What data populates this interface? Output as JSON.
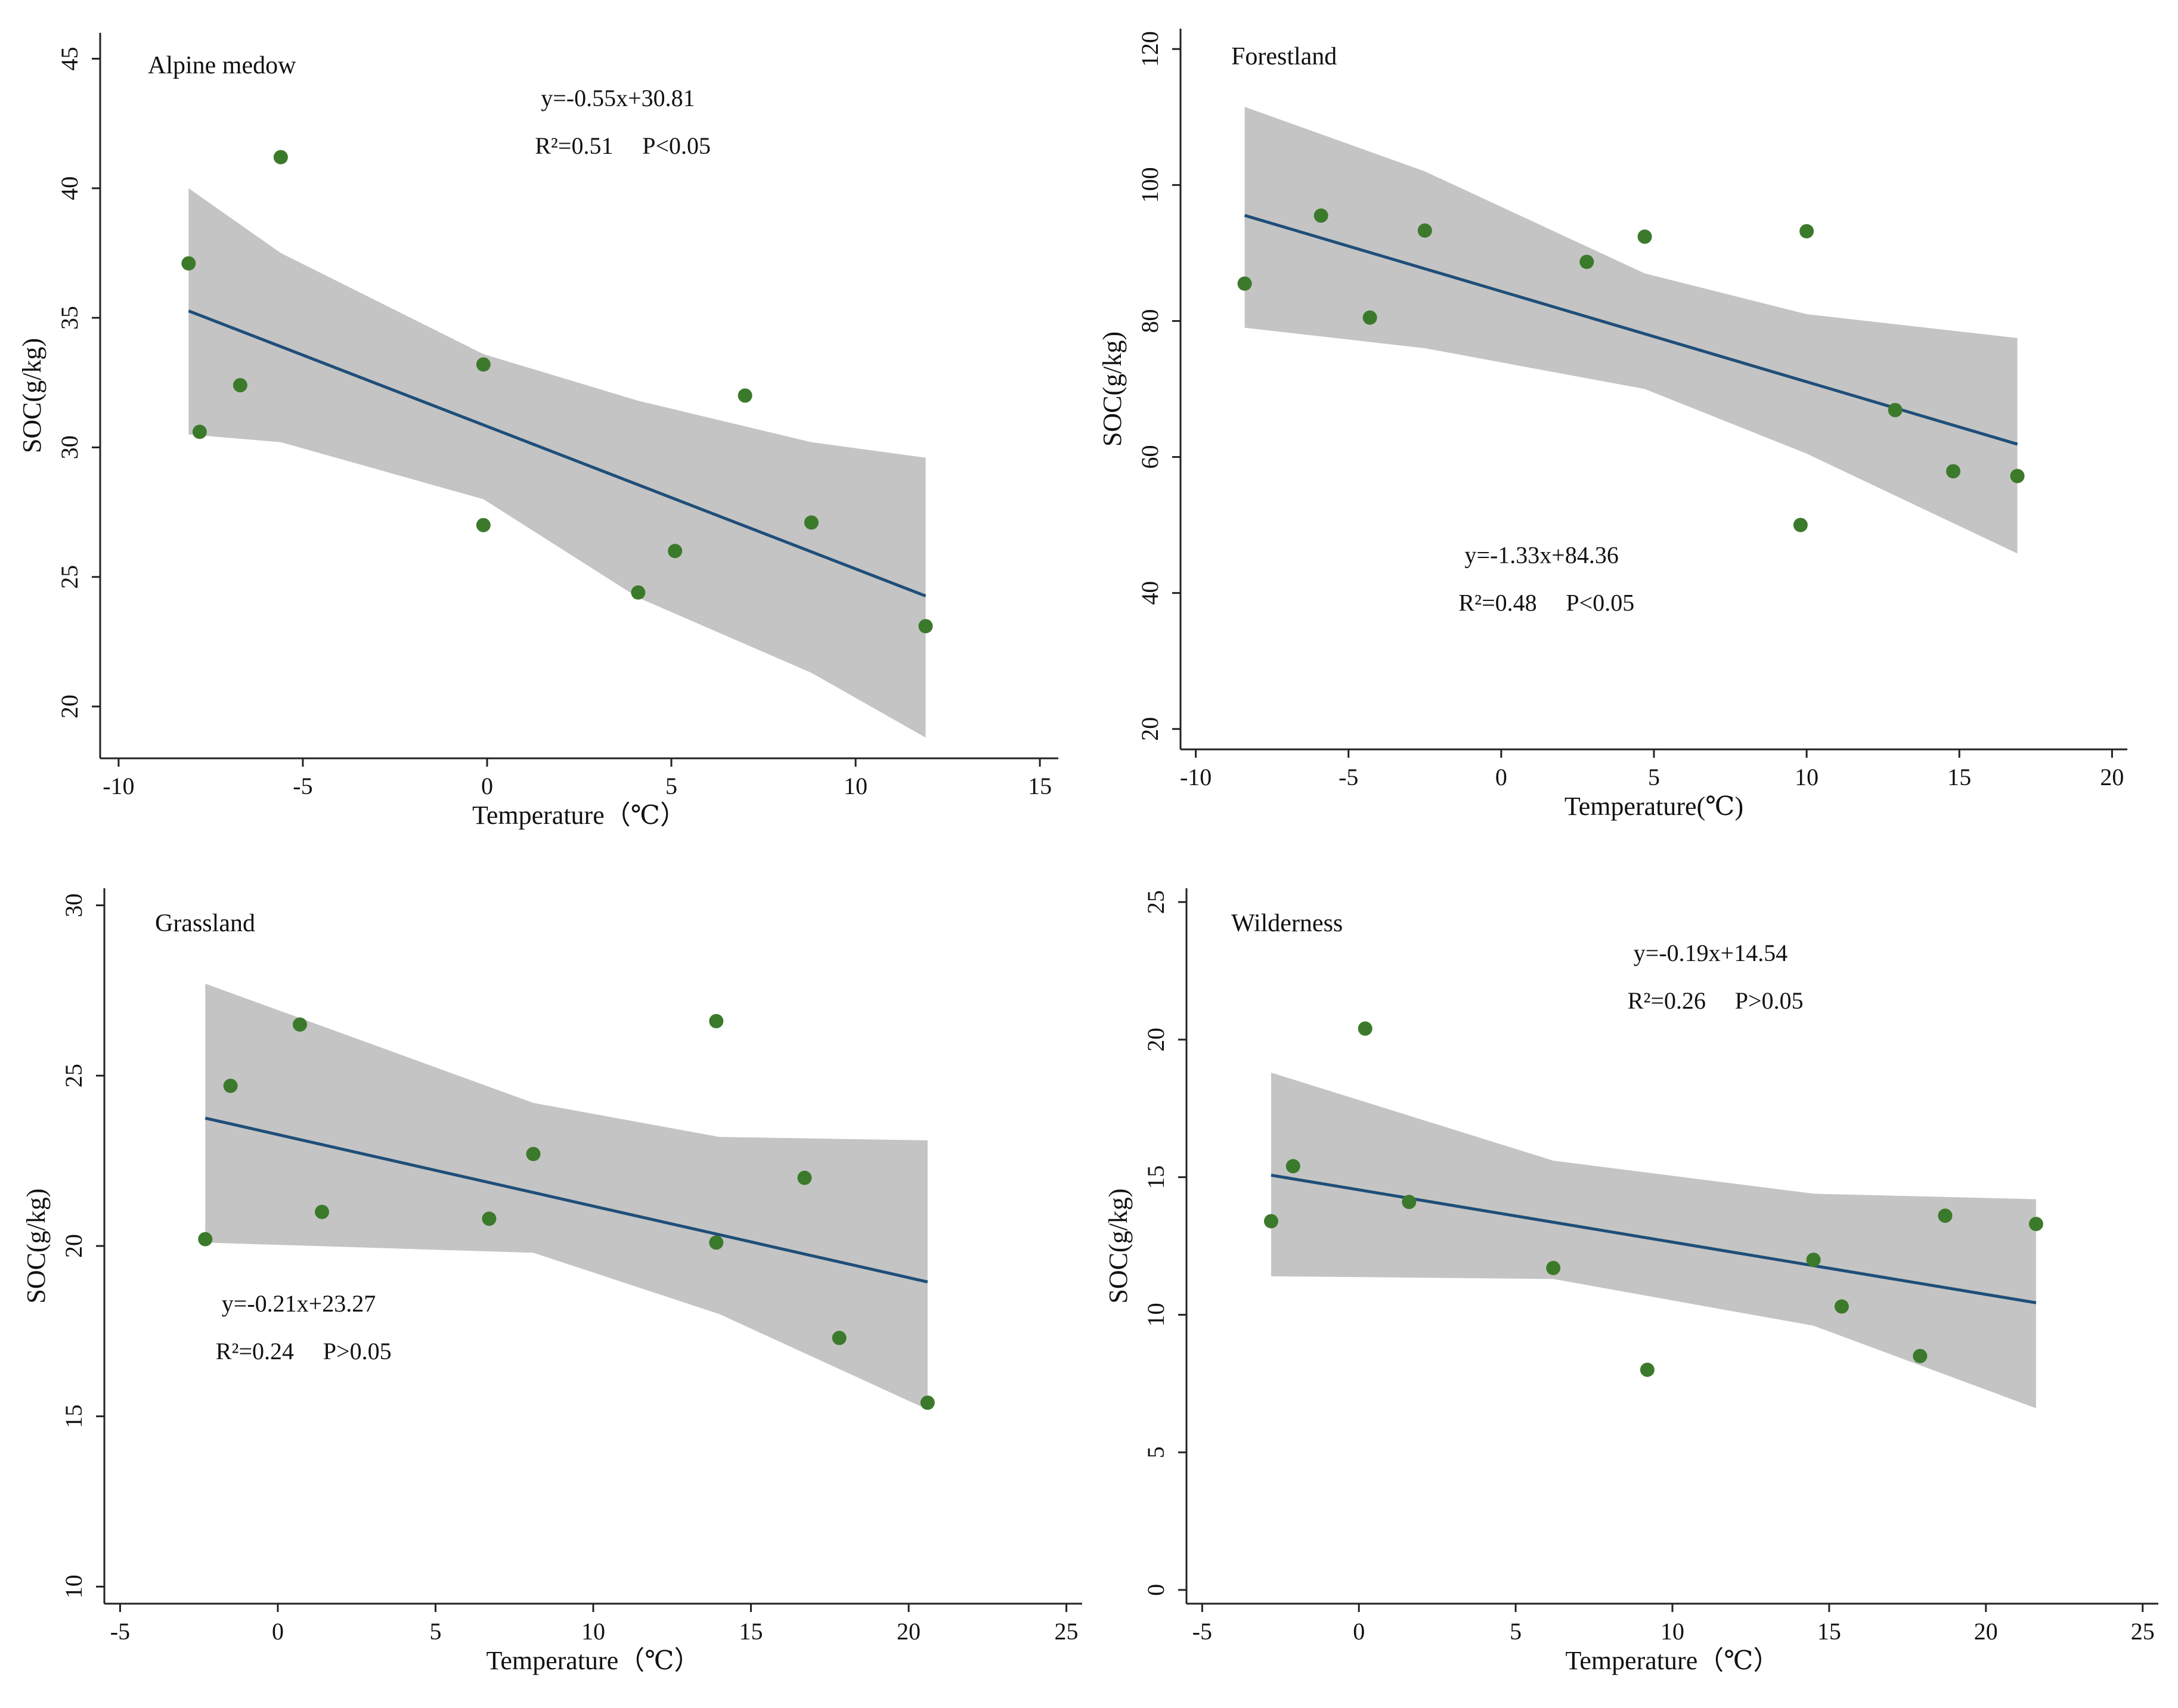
{
  "colors": {
    "point": "#3c7a2b",
    "fit_line": "#1f4e79",
    "band": "#c4c4c4"
  },
  "chart_data": [
    {
      "type": "scatter",
      "title": "Alpine medow",
      "xlabel": "Temperature（℃）",
      "ylabel": "SOC(g/kg)",
      "xlim": [
        -10.5,
        15.5
      ],
      "ylim": [
        18,
        46
      ],
      "xticks": [
        -10,
        -5,
        0,
        5,
        10,
        15
      ],
      "yticks": [
        20,
        25,
        30,
        35,
        40,
        45
      ],
      "points": [
        {
          "x": -8.1,
          "y": 37.1
        },
        {
          "x": -7.8,
          "y": 30.6
        },
        {
          "x": -6.7,
          "y": 32.4
        },
        {
          "x": -5.6,
          "y": 41.2
        },
        {
          "x": -0.1,
          "y": 33.2
        },
        {
          "x": -0.1,
          "y": 27.0
        },
        {
          "x": 4.1,
          "y": 24.4
        },
        {
          "x": 5.1,
          "y": 26.0
        },
        {
          "x": 7.0,
          "y": 32.0
        },
        {
          "x": 8.8,
          "y": 27.1
        },
        {
          "x": 11.9,
          "y": 23.1
        }
      ],
      "fit": {
        "slope": -0.55,
        "intercept": 30.81,
        "x_range": [
          -8.1,
          11.9
        ]
      },
      "band": {
        "x": [
          -8.1,
          -5.6,
          -0.1,
          4.1,
          8.8,
          11.9
        ],
        "upper": [
          40.0,
          37.5,
          33.6,
          31.8,
          30.2,
          29.6
        ],
        "lower": [
          30.5,
          30.2,
          28.0,
          24.2,
          21.3,
          18.8
        ]
      },
      "equation": "y=-0.55x+30.81",
      "r2_label": "R²=0.51",
      "p_label": "P<0.05",
      "title_pos": "top-left",
      "stats_pos": "top-center"
    },
    {
      "type": "scatter",
      "title": "Forestland",
      "xlabel": "Temperature(℃)",
      "ylabel": "SOC(g/kg)",
      "xlim": [
        -10.5,
        20.5
      ],
      "ylim": [
        17,
        123
      ],
      "xticks": [
        -10,
        -5,
        0,
        5,
        10,
        15,
        20
      ],
      "yticks": [
        20,
        40,
        60,
        80,
        100,
        120
      ],
      "points": [
        {
          "x": -8.4,
          "y": 85.5
        },
        {
          "x": -5.9,
          "y": 95.5
        },
        {
          "x": -4.3,
          "y": 80.5
        },
        {
          "x": -2.5,
          "y": 93.3
        },
        {
          "x": 2.8,
          "y": 88.7
        },
        {
          "x": 4.7,
          "y": 92.4
        },
        {
          "x": 10.0,
          "y": 93.2
        },
        {
          "x": 9.8,
          "y": 50.0
        },
        {
          "x": 12.9,
          "y": 66.9
        },
        {
          "x": 14.8,
          "y": 57.9
        },
        {
          "x": 16.9,
          "y": 57.2
        }
      ],
      "fit": {
        "slope": -1.33,
        "intercept": 84.36,
        "x_range": [
          -8.4,
          16.9
        ]
      },
      "band": {
        "x": [
          -8.4,
          -2.5,
          4.7,
          10.0,
          16.9
        ],
        "upper": [
          111.5,
          102.0,
          87.0,
          81.0,
          77.5
        ],
        "lower": [
          79.0,
          76.0,
          70.0,
          60.5,
          45.8
        ]
      },
      "equation": "y=-1.33x+84.36",
      "r2_label": "R²=0.48",
      "p_label": "P<0.05",
      "title_pos": "top-left",
      "stats_pos": "bottom-center"
    },
    {
      "type": "scatter",
      "title": "Grassland",
      "xlabel": "Temperature（℃）",
      "ylabel": "SOC(g/kg)",
      "xlim": [
        -5.5,
        25.5
      ],
      "ylim": [
        9.5,
        30.5
      ],
      "xticks": [
        -5,
        0,
        5,
        10,
        15,
        20,
        25
      ],
      "yticks": [
        10,
        15,
        20,
        25,
        30
      ],
      "points": [
        {
          "x": -2.3,
          "y": 20.2
        },
        {
          "x": -1.5,
          "y": 24.7
        },
        {
          "x": 0.7,
          "y": 26.5
        },
        {
          "x": 1.4,
          "y": 21.0
        },
        {
          "x": 6.7,
          "y": 20.8
        },
        {
          "x": 8.1,
          "y": 22.7
        },
        {
          "x": 13.9,
          "y": 26.6
        },
        {
          "x": 13.9,
          "y": 20.1
        },
        {
          "x": 16.7,
          "y": 22.0
        },
        {
          "x": 17.8,
          "y": 17.3
        },
        {
          "x": 20.6,
          "y": 15.4
        }
      ],
      "fit": {
        "slope": -0.21,
        "intercept": 23.27,
        "x_range": [
          -2.3,
          20.6
        ]
      },
      "band": {
        "x": [
          -2.3,
          8.1,
          14.0,
          20.6
        ],
        "upper": [
          27.7,
          24.2,
          23.2,
          23.1
        ],
        "lower": [
          20.1,
          19.8,
          18.0,
          15.2
        ]
      },
      "equation": "y=-0.21x+23.27",
      "r2_label": "R²=0.24",
      "p_label": "P>0.05",
      "title_pos": "top-left",
      "stats_pos": "bottom-left"
    },
    {
      "type": "scatter",
      "title": "Wilderness",
      "xlabel": "Temperature（℃）",
      "ylabel": "SOC(g/kg)",
      "xlim": [
        -5.5,
        25.5
      ],
      "ylim": [
        -0.5,
        25.5
      ],
      "xticks": [
        -5,
        0,
        5,
        10,
        15,
        20,
        25
      ],
      "yticks": [
        0,
        5,
        10,
        15,
        20,
        25
      ],
      "points": [
        {
          "x": -2.8,
          "y": 13.4
        },
        {
          "x": -2.1,
          "y": 15.4
        },
        {
          "x": 0.2,
          "y": 20.4
        },
        {
          "x": 1.6,
          "y": 14.1
        },
        {
          "x": 6.2,
          "y": 11.7
        },
        {
          "x": 9.2,
          "y": 8.0
        },
        {
          "x": 14.5,
          "y": 12.0
        },
        {
          "x": 15.4,
          "y": 10.3
        },
        {
          "x": 17.9,
          "y": 8.5
        },
        {
          "x": 18.7,
          "y": 13.6
        },
        {
          "x": 21.6,
          "y": 13.3
        }
      ],
      "fit": {
        "slope": -0.19,
        "intercept": 14.54,
        "x_range": [
          -2.8,
          21.6
        ]
      },
      "band": {
        "x": [
          -2.8,
          6.2,
          14.5,
          21.6
        ],
        "upper": [
          18.8,
          15.6,
          14.4,
          14.2
        ],
        "lower": [
          11.4,
          11.3,
          9.6,
          6.6
        ]
      },
      "equation": "y=-0.19x+14.54",
      "r2_label": "R²=0.26",
      "p_label": "P>0.05",
      "title_pos": "top-left",
      "stats_pos": "top-center"
    }
  ]
}
